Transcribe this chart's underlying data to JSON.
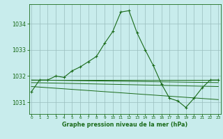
{
  "title": "Graphe pression niveau de la mer (hPa)",
  "bg_color": "#c8ecec",
  "line_color": "#1a6b1a",
  "series": {
    "main": {
      "x": [
        0,
        1,
        2,
        3,
        4,
        5,
        6,
        7,
        8,
        9,
        10,
        11,
        12,
        13,
        14,
        15,
        16,
        17,
        18,
        19,
        20,
        21,
        22,
        23
      ],
      "y": [
        1031.4,
        1031.85,
        1031.85,
        1032.0,
        1031.95,
        1032.2,
        1032.35,
        1032.55,
        1032.75,
        1033.25,
        1033.7,
        1034.45,
        1034.5,
        1033.65,
        1033.0,
        1032.4,
        1031.7,
        1031.15,
        1031.05,
        1030.8,
        1031.15,
        1031.55,
        1031.85,
        1031.85
      ]
    },
    "flat1": {
      "x": [
        0,
        23
      ],
      "y": [
        1031.85,
        1031.85
      ]
    },
    "flat2": {
      "x": [
        0,
        23
      ],
      "y": [
        1031.85,
        1031.75
      ]
    },
    "flat3": {
      "x": [
        0,
        23
      ],
      "y": [
        1031.75,
        1031.6
      ]
    },
    "flat4": {
      "x": [
        0,
        23
      ],
      "y": [
        1031.6,
        1031.1
      ]
    }
  },
  "xlim": [
    -0.3,
    23.3
  ],
  "ylim": [
    1030.55,
    1034.75
  ],
  "yticks": [
    1031,
    1032,
    1033,
    1034
  ],
  "xticks": [
    0,
    1,
    2,
    3,
    4,
    5,
    6,
    7,
    8,
    9,
    10,
    11,
    12,
    13,
    14,
    15,
    16,
    17,
    18,
    19,
    20,
    21,
    22,
    23
  ],
  "xlabel_fontsize": 5.8,
  "ytick_fontsize": 5.8,
  "xtick_fontsize": 4.2
}
